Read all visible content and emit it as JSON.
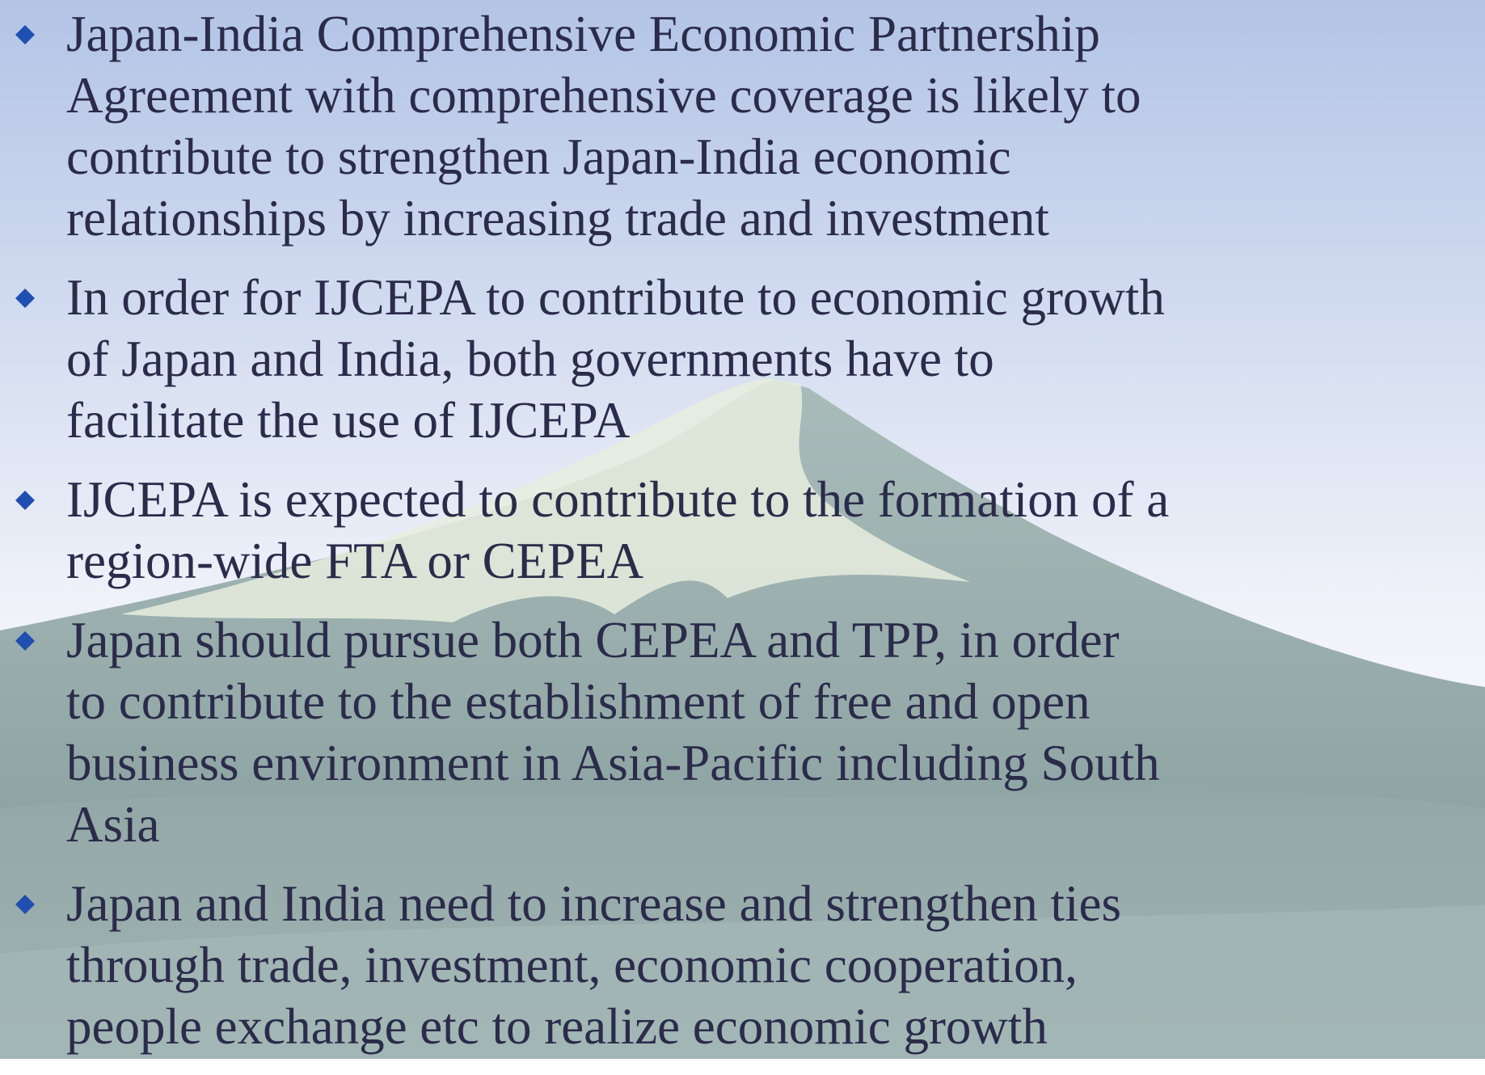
{
  "slide": {
    "bullets": [
      {
        "lines": [
          "Japan-India Comprehensive Economic Partnership",
          "Agreement with comprehensive coverage is likely to",
          "contribute to strengthen Japan-India economic",
          "relationships by increasing trade and investment"
        ]
      },
      {
        "lines": [
          "In order for IJCEPA to contribute to economic growth",
          "of Japan and India, both governments have to",
          "facilitate the use of IJCEPA"
        ]
      },
      {
        "lines": [
          "IJCEPA is expected to contribute to the formation of a",
          "region-wide FTA or CEPEA"
        ]
      },
      {
        "lines": [
          "Japan should pursue both CEPEA and TPP, in order",
          "to contribute to the establishment of free and open",
          "business environment in Asia-Pacific including South",
          "Asia"
        ]
      },
      {
        "lines": [
          "Japan and India need to increase and strengthen ties",
          "through trade, investment, economic cooperation,",
          "people exchange etc to realize economic growth"
        ]
      }
    ]
  }
}
